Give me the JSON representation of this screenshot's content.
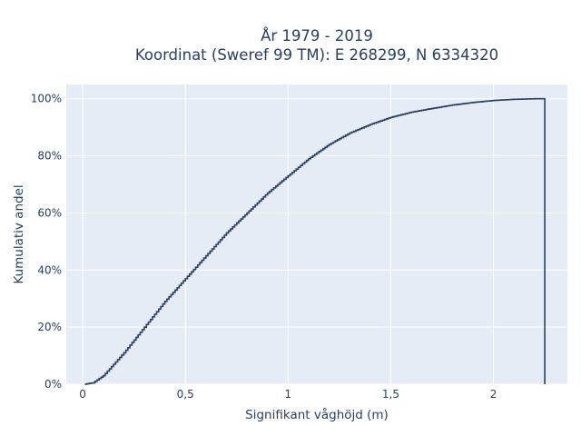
{
  "chart_data": {
    "type": "line",
    "line_shape": "step",
    "title_lines": [
      "År 1979 - 2019",
      "Koordinat (Sweref 99 TM): E 268299, N 6334320"
    ],
    "xlabel": "Signifikant våghöjd (m)",
    "ylabel": "Kumulativ andel",
    "xlim": [
      -0.08,
      2.36
    ],
    "ylim": [
      0,
      1.05
    ],
    "x_ticks": [
      0,
      0.5,
      1,
      1.5,
      2
    ],
    "x_tick_labels": [
      "0",
      "0,5",
      "1",
      "1,5",
      "2"
    ],
    "y_ticks": [
      0,
      0.2,
      0.4,
      0.6,
      0.8,
      1.0
    ],
    "y_tick_labels": [
      "0%",
      "20%",
      "40%",
      "60%",
      "80%",
      "100%"
    ],
    "grid": true,
    "series": [
      {
        "x": [
          0.01,
          0.05,
          0.1,
          0.2,
          0.3,
          0.4,
          0.5,
          0.6,
          0.7,
          0.8,
          0.9,
          1.0,
          1.1,
          1.2,
          1.3,
          1.4,
          1.5,
          1.6,
          1.7,
          1.8,
          1.9,
          2.0,
          2.1,
          2.2,
          2.25,
          2.25
        ],
        "y": [
          0.0,
          0.005,
          0.03,
          0.11,
          0.2,
          0.29,
          0.37,
          0.45,
          0.53,
          0.6,
          0.67,
          0.73,
          0.79,
          0.84,
          0.88,
          0.91,
          0.935,
          0.953,
          0.966,
          0.978,
          0.987,
          0.994,
          0.998,
          1.0,
          1.0,
          0.0
        ],
        "color": "#2a3f5f"
      }
    ],
    "plot_bg": "#e5ecf6",
    "grid_color": "#ffffff"
  }
}
